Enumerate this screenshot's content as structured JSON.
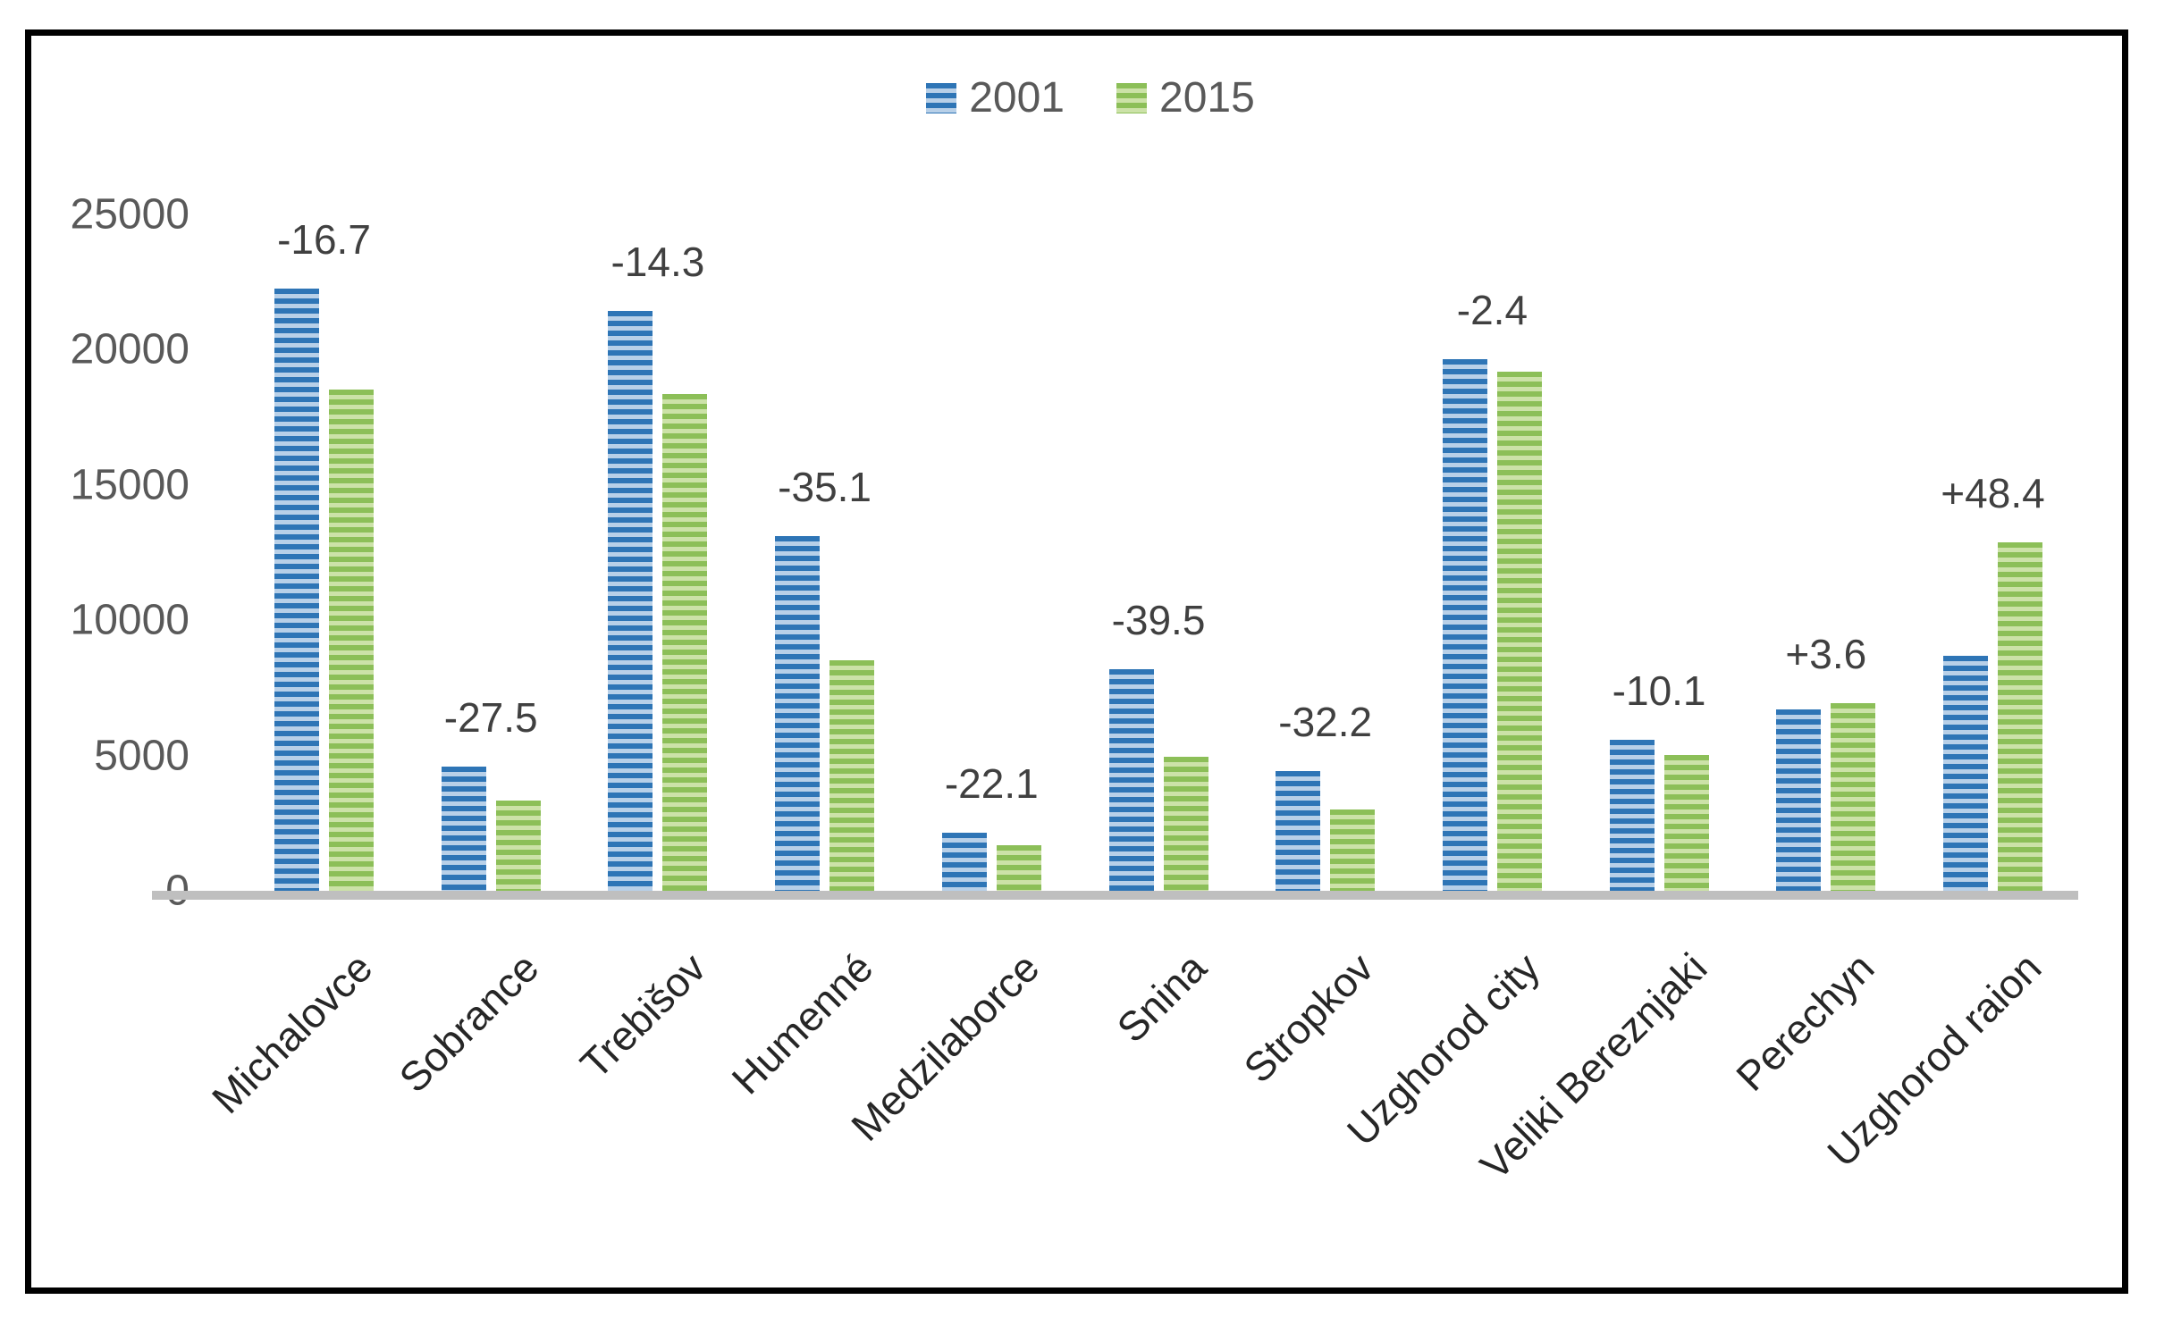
{
  "chart_data": {
    "type": "bar",
    "title": "",
    "categories": [
      "Michalovce",
      "Sobrance",
      "Trebišov",
      "Humenné",
      "Medzilaborce",
      "Snina",
      "Stropkov",
      "Uzghorod city",
      "Veliki Bereznjaki",
      "Perechyn",
      "Uzghorod raion"
    ],
    "series": [
      {
        "name": "2001",
        "values": [
          22250,
          4590,
          21440,
          13110,
          2150,
          8190,
          4430,
          19650,
          5580,
          6700,
          8690
        ],
        "color_dark": "#2e75b6",
        "color_light": "#b8d0e8"
      },
      {
        "name": "2015",
        "values": [
          18530,
          3330,
          18375,
          8510,
          1675,
          4955,
          3005,
          19180,
          5015,
          6940,
          12895
        ],
        "color_dark": "#8cbf58",
        "color_light": "#cce2a8"
      }
    ],
    "change_labels": [
      "-16.7",
      "-27.5",
      "-14.3",
      "-35.1",
      "-22.1",
      "-39.5",
      "-32.2",
      "-2.4",
      "-10.1",
      "+3.6",
      "+48.4"
    ],
    "ylim": [
      0,
      25000
    ],
    "yticks": [
      "0",
      "5000",
      "10000",
      "15000",
      "20000",
      "25000"
    ],
    "xlabel": "",
    "ylabel": "",
    "grid": false,
    "legend_position": "top-center",
    "bar_style": "horizontal-stripes",
    "axis_line_color": "#bfbfbf",
    "tick_text_color": "#595959",
    "pct_text_color": "#404040",
    "frame_color": "#000000"
  }
}
